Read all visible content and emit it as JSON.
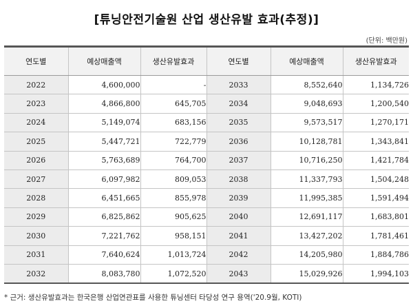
{
  "title": "[튜닝안전기술원 산업 생산유발 효과(추정)]",
  "unit": "(단위: 백만원)",
  "headers": {
    "year": "연도별",
    "sales": "예상매출액",
    "effect": "생산유발효과"
  },
  "rows": [
    {
      "left": {
        "year": "2022",
        "sales": "4,600,000",
        "effect": "-"
      },
      "right": {
        "year": "2033",
        "sales": "8,552,640",
        "effect": "1,134,726"
      }
    },
    {
      "left": {
        "year": "2023",
        "sales": "4,866,800",
        "effect": "645,705"
      },
      "right": {
        "year": "2034",
        "sales": "9,048,693",
        "effect": "1,200,540"
      }
    },
    {
      "left": {
        "year": "2024",
        "sales": "5,149,074",
        "effect": "683,156"
      },
      "right": {
        "year": "2035",
        "sales": "9,573,517",
        "effect": "1,270,171"
      }
    },
    {
      "left": {
        "year": "2025",
        "sales": "5,447,721",
        "effect": "722,779"
      },
      "right": {
        "year": "2036",
        "sales": "10,128,781",
        "effect": "1,343,841"
      }
    },
    {
      "left": {
        "year": "2026",
        "sales": "5,763,689",
        "effect": "764,700"
      },
      "right": {
        "year": "2037",
        "sales": "10,716,250",
        "effect": "1,421,784"
      }
    },
    {
      "left": {
        "year": "2027",
        "sales": "6,097,982",
        "effect": "809,053"
      },
      "right": {
        "year": "2038",
        "sales": "11,337,793",
        "effect": "1,504,248"
      }
    },
    {
      "left": {
        "year": "2028",
        "sales": "6,451,665",
        "effect": "855,978"
      },
      "right": {
        "year": "2039",
        "sales": "11,995,385",
        "effect": "1,591,494"
      }
    },
    {
      "left": {
        "year": "2029",
        "sales": "6,825,862",
        "effect": "905,625"
      },
      "right": {
        "year": "2040",
        "sales": "12,691,117",
        "effect": "1,683,801"
      }
    },
    {
      "left": {
        "year": "2030",
        "sales": "7,221,762",
        "effect": "958,151"
      },
      "right": {
        "year": "2041",
        "sales": "13,427,202",
        "effect": "1,781,461"
      }
    },
    {
      "left": {
        "year": "2031",
        "sales": "7,640,624",
        "effect": "1,013,724"
      },
      "right": {
        "year": "2042",
        "sales": "14,205,980",
        "effect": "1,884,786"
      }
    },
    {
      "left": {
        "year": "2032",
        "sales": "8,083,780",
        "effect": "1,072,520"
      },
      "right": {
        "year": "2043",
        "sales": "15,029,926",
        "effect": "1,994,103"
      }
    }
  ],
  "footnote": "* 근거: 생산유발효과는 한국은행 산업연관표를 사용한 튜닝센터 타당성 연구 용역('20.9월, KOTI)"
}
